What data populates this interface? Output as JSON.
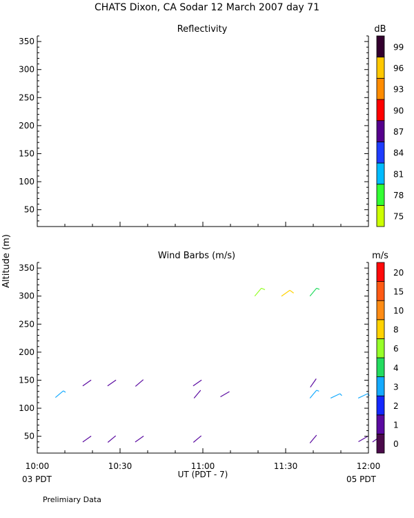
{
  "title": "CHATS Dixon, CA   Sodar   12 March 2007   day   71",
  "ylabel": "Altitude  (m)",
  "xlabel": "UT  (PDT - 7)",
  "x_left_note": "03 PDT",
  "x_right_note": "05 PDT",
  "footer": "Prelimiary Data",
  "chart_data": [
    {
      "type": "heatmap",
      "title": "Reflectivity",
      "colorbar_unit": "dB",
      "x_ticks": [
        "10:00",
        "10:30",
        "11:00",
        "11:30",
        "12:00"
      ],
      "y_ticks": [
        50,
        100,
        150,
        200,
        250,
        300,
        350
      ],
      "ylim": [
        20,
        360
      ],
      "colorbar": [
        {
          "label": "75",
          "color": "#ccff00"
        },
        {
          "label": "78",
          "color": "#33ff33"
        },
        {
          "label": "81",
          "color": "#00bbff"
        },
        {
          "label": "84",
          "color": "#1e3cff"
        },
        {
          "label": "87",
          "color": "#55008c"
        },
        {
          "label": "90",
          "color": "#ff0000"
        },
        {
          "label": "93",
          "color": "#ff8c00"
        },
        {
          "label": "96",
          "color": "#ffc800"
        },
        {
          "label": "99",
          "color": "#33002e"
        }
      ],
      "values": []
    },
    {
      "type": "scatter",
      "title": "Wind Barbs (m/s)",
      "colorbar_unit": "m/s",
      "x_ticks": [
        "10:00",
        "10:30",
        "11:00",
        "11:30",
        "12:00"
      ],
      "y_ticks": [
        50,
        100,
        150,
        200,
        250,
        300,
        350
      ],
      "xlim": [
        0,
        120
      ],
      "ylim": [
        20,
        360
      ],
      "colorbar": [
        {
          "label": "0",
          "color": "#4b0a4b"
        },
        {
          "label": "1",
          "color": "#5a0aa0"
        },
        {
          "label": "2",
          "color": "#1428ff"
        },
        {
          "label": "3",
          "color": "#14aaff"
        },
        {
          "label": "4",
          "color": "#23dc5f"
        },
        {
          "label": "6",
          "color": "#96ff28"
        },
        {
          "label": "8",
          "color": "#ffd200"
        },
        {
          "label": "10",
          "color": "#ff8c14"
        },
        {
          "label": "15",
          "color": "#ff5a14"
        },
        {
          "label": "20",
          "color": "#ff0a0a"
        }
      ],
      "barbs": [
        {
          "minute": 8,
          "alt": 125,
          "speed": 3,
          "dir": 50,
          "color": "#14aaff"
        },
        {
          "minute": 18,
          "alt": 145,
          "speed": 1,
          "dir": 55,
          "color": "#5a0aa0"
        },
        {
          "minute": 27,
          "alt": 145,
          "speed": 1,
          "dir": 55,
          "color": "#5a0aa0"
        },
        {
          "minute": 37,
          "alt": 145,
          "speed": 1,
          "dir": 50,
          "color": "#5a0aa0"
        },
        {
          "minute": 58,
          "alt": 145,
          "speed": 1,
          "dir": 55,
          "color": "#5a0aa0"
        },
        {
          "minute": 58,
          "alt": 125,
          "speed": 1,
          "dir": 40,
          "color": "#5a0aa0"
        },
        {
          "minute": 68,
          "alt": 125,
          "speed": 1,
          "dir": 60,
          "color": "#5a0aa0"
        },
        {
          "minute": 80,
          "alt": 307,
          "speed": 6,
          "dir": 40,
          "color": "#96ff28"
        },
        {
          "minute": 90,
          "alt": 305,
          "speed": 8,
          "dir": 55,
          "color": "#ffd200"
        },
        {
          "minute": 100,
          "alt": 307,
          "speed": 4,
          "dir": 40,
          "color": "#23dc5f"
        },
        {
          "minute": 100,
          "alt": 145,
          "speed": 1,
          "dir": 35,
          "color": "#5a0aa0"
        },
        {
          "minute": 100,
          "alt": 125,
          "speed": 3,
          "dir": 40,
          "color": "#14aaff"
        },
        {
          "minute": 108,
          "alt": 122,
          "speed": 3,
          "dir": 65,
          "color": "#14aaff"
        },
        {
          "minute": 118,
          "alt": 122,
          "speed": 3,
          "dir": 65,
          "color": "#14aaff"
        },
        {
          "minute": 18,
          "alt": 45,
          "speed": 1,
          "dir": 55,
          "color": "#5a0aa0"
        },
        {
          "minute": 27,
          "alt": 45,
          "speed": 1,
          "dir": 50,
          "color": "#5a0aa0"
        },
        {
          "minute": 37,
          "alt": 45,
          "speed": 1,
          "dir": 55,
          "color": "#5a0aa0"
        },
        {
          "minute": 58,
          "alt": 45,
          "speed": 1,
          "dir": 50,
          "color": "#5a0aa0"
        },
        {
          "minute": 100,
          "alt": 45,
          "speed": 1,
          "dir": 40,
          "color": "#5a0aa0"
        },
        {
          "minute": 118,
          "alt": 45,
          "speed": 1,
          "dir": 60,
          "color": "#5a0aa0"
        },
        {
          "minute": 123,
          "alt": 45,
          "speed": 1,
          "dir": 55,
          "color": "#5a0aa0"
        }
      ]
    }
  ]
}
